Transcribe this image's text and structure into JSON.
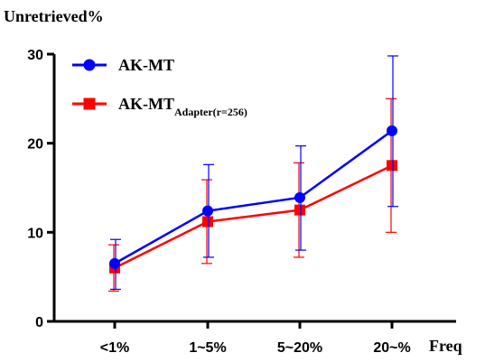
{
  "chart_data": {
    "type": "line",
    "title": "",
    "ylabel": "Unretrieved%",
    "xlabel": "Freq",
    "categories": [
      "<1%",
      "1~5%",
      "5~20%",
      "20~%"
    ],
    "ylim": [
      0,
      30
    ],
    "yticks": [
      0,
      10,
      20,
      30
    ],
    "grid": false,
    "legend_position": "top-left",
    "series": [
      {
        "name": "AK-MT",
        "name_main": "AK-MT",
        "name_sub": "",
        "color": "#0000ff",
        "marker": "circle",
        "values": [
          6.5,
          12.4,
          13.9,
          21.4
        ],
        "err_low": [
          3.6,
          7.2,
          8.0,
          12.9
        ],
        "err_high": [
          9.2,
          17.6,
          19.7,
          29.8
        ]
      },
      {
        "name": "AK-MTAdapter(r=256)",
        "name_main": "AK-MT",
        "name_sub": "Adapter(r=256)",
        "color": "#ff0000",
        "marker": "square",
        "values": [
          6.0,
          11.2,
          12.5,
          17.5
        ],
        "err_low": [
          3.4,
          6.5,
          7.2,
          10.0
        ],
        "err_high": [
          8.6,
          15.9,
          17.8,
          25.0
        ]
      }
    ]
  }
}
